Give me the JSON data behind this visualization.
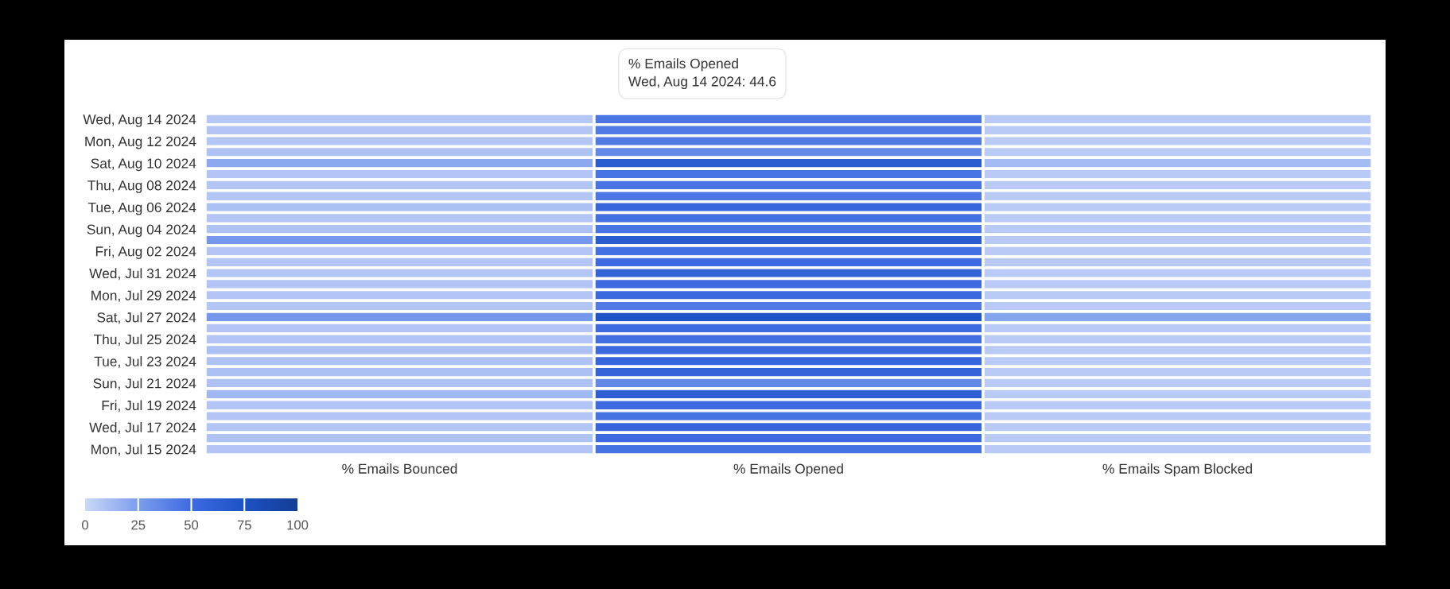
{
  "chart_data": {
    "type": "heatmap",
    "categories": [
      "% Emails Bounced",
      "% Emails Opened",
      "% Emails Spam Blocked"
    ],
    "y_categories": [
      "Wed, Aug 14 2024",
      null,
      "Mon, Aug 12 2024",
      null,
      "Sat, Aug 10 2024",
      null,
      "Thu, Aug 08 2024",
      null,
      "Tue, Aug 06 2024",
      null,
      "Sun, Aug 04 2024",
      null,
      "Fri, Aug 02 2024",
      null,
      "Wed, Jul 31 2024",
      null,
      "Mon, Jul 29 2024",
      null,
      "Sat, Jul 27 2024",
      null,
      "Thu, Jul 25 2024",
      null,
      "Tue, Jul 23 2024",
      null,
      "Sun, Jul 21 2024",
      null,
      "Fri, Jul 19 2024",
      null,
      "Wed, Jul 17 2024",
      null,
      "Mon, Jul 15 2024"
    ],
    "cells": [
      [
        7,
        44.6,
        6
      ],
      [
        8,
        42,
        6
      ],
      [
        8,
        42,
        6
      ],
      [
        9,
        35,
        6
      ],
      [
        20,
        65,
        12
      ],
      [
        8,
        45,
        6
      ],
      [
        8,
        45,
        6
      ],
      [
        8,
        44,
        6
      ],
      [
        10,
        55,
        6
      ],
      [
        8,
        47,
        6
      ],
      [
        9,
        45,
        6
      ],
      [
        28,
        65,
        6
      ],
      [
        8,
        47,
        6
      ],
      [
        8,
        50,
        6
      ],
      [
        8,
        56,
        6
      ],
      [
        8,
        50,
        6
      ],
      [
        8,
        52,
        6
      ],
      [
        8,
        42,
        6
      ],
      [
        28,
        72,
        22
      ],
      [
        8,
        50,
        6
      ],
      [
        8,
        48,
        6
      ],
      [
        10,
        50,
        6
      ],
      [
        9,
        55,
        6
      ],
      [
        10,
        56,
        6
      ],
      [
        9,
        35,
        6
      ],
      [
        14,
        62,
        6
      ],
      [
        8,
        50,
        6
      ],
      [
        8,
        46,
        6
      ],
      [
        8,
        55,
        6
      ],
      [
        9,
        50,
        6
      ],
      [
        8,
        46,
        6
      ]
    ],
    "colors": [
      "#cad8f8",
      "#7c9ded",
      "#3d6ae0",
      "#1c52c4",
      "#143e96"
    ],
    "clim": [
      0,
      100
    ],
    "cticks": [
      0,
      25,
      50,
      75,
      100
    ],
    "annotations": [
      "% Emails Opened\nWed, Aug 14 2024: 44.6"
    ]
  }
}
